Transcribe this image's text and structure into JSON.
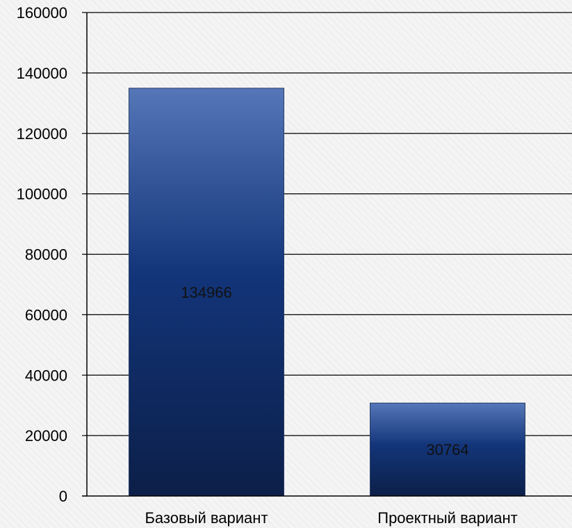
{
  "chart_data": {
    "type": "bar",
    "categories": [
      "Базовый вариант",
      "Проектный вариант"
    ],
    "values": [
      134966,
      30764
    ],
    "data_labels": [
      "134966",
      "30764"
    ],
    "title": "",
    "xlabel": "",
    "ylabel": "",
    "ylim": [
      0,
      160000
    ],
    "yticks": [
      0,
      20000,
      40000,
      60000,
      80000,
      100000,
      120000,
      140000,
      160000
    ],
    "ytick_labels": [
      "0",
      "20000",
      "40000",
      "60000",
      "80000",
      "100000",
      "120000",
      "140000",
      "160000"
    ],
    "grid": true,
    "legend": "none",
    "bar_color_top": "#5577b8",
    "bar_color_mid": "#13357a",
    "bar_color_bottom": "#0c1f48"
  }
}
